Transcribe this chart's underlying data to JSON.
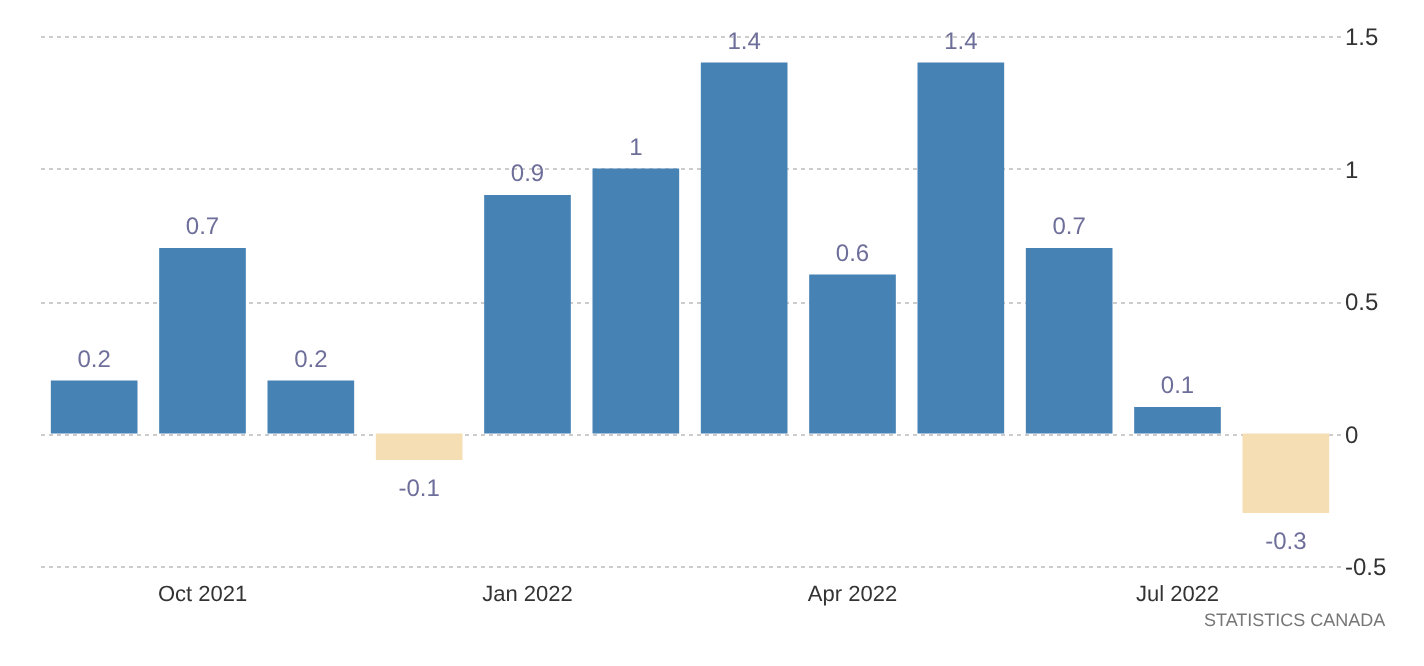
{
  "chart_data": {
    "type": "bar",
    "categories": [
      null,
      "Oct 2021",
      null,
      null,
      "Jan 2022",
      null,
      null,
      "Apr 2022",
      null,
      null,
      "Jul 2022",
      null
    ],
    "values": [
      0.2,
      0.7,
      0.2,
      -0.1,
      0.9,
      1,
      1.4,
      0.6,
      1.4,
      0.7,
      0.1,
      -0.3
    ],
    "colors": [
      "#4682b4",
      "#4682b4",
      "#4682b4",
      "#f5deb3",
      "#4682b4",
      "#4682b4",
      "#4682b4",
      "#4682b4",
      "#4682b4",
      "#4682b4",
      "#4682b4",
      "#f5deb3"
    ],
    "ylim": [
      -0.5,
      1.5
    ],
    "yticks": [
      -0.5,
      0,
      0.5,
      1,
      1.5
    ],
    "grid": "y",
    "data_labels": true,
    "annotations": [
      "STATISTICS CANADA"
    ]
  }
}
